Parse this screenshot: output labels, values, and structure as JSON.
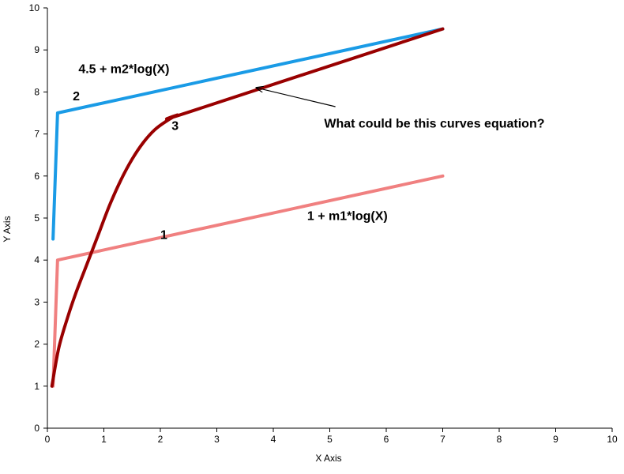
{
  "chart_data": {
    "type": "line",
    "xlabel": "X Axis",
    "ylabel": "Y Axis",
    "xlim": [
      0,
      10
    ],
    "ylim": [
      0,
      10
    ],
    "x_ticks": [
      "0",
      "1",
      "2",
      "3",
      "4",
      "5",
      "6",
      "7",
      "8",
      "9",
      "10"
    ],
    "y_ticks": [
      "0",
      "1",
      "2",
      "3",
      "4",
      "5",
      "6",
      "7",
      "8",
      "9",
      "10"
    ],
    "grid": false,
    "legend": "none",
    "series": [
      {
        "label": "1",
        "color": "#f08080",
        "points": [
          [
            0.1,
            1.0
          ],
          [
            0.18,
            4.0
          ],
          [
            7.0,
            6.0
          ]
        ]
      },
      {
        "label": "2",
        "color": "#1a9be6",
        "points": [
          [
            0.1,
            4.5
          ],
          [
            0.18,
            7.5
          ],
          [
            7.0,
            9.5
          ]
        ]
      },
      {
        "label": "3",
        "color": "#990000",
        "points": [
          [
            0.08,
            1.0
          ],
          [
            0.2,
            1.9
          ],
          [
            0.35,
            2.6
          ],
          [
            0.5,
            3.2
          ],
          [
            0.7,
            3.9
          ],
          [
            0.9,
            4.6
          ],
          [
            1.1,
            5.3
          ],
          [
            1.3,
            5.9
          ],
          [
            1.5,
            6.4
          ],
          [
            1.7,
            6.8
          ],
          [
            1.9,
            7.1
          ],
          [
            2.1,
            7.3
          ],
          [
            2.3,
            7.45
          ],
          [
            2.5,
            7.52
          ],
          [
            7.0,
            9.5
          ]
        ]
      }
    ],
    "annotations": [
      {
        "id": "label-1",
        "text": "1",
        "x": 2.0,
        "y": 4.5
      },
      {
        "id": "label-2",
        "text": "2",
        "x": 0.45,
        "y": 7.8
      },
      {
        "id": "label-3",
        "text": "3",
        "x": 2.2,
        "y": 7.1
      },
      {
        "id": "formula-2",
        "text": "4.5 + m2*log(X)",
        "x": 0.55,
        "y": 8.45
      },
      {
        "id": "formula-1",
        "text": "1 + m1*log(X)",
        "x": 4.6,
        "y": 4.95
      },
      {
        "id": "question",
        "text": "What could be this curves equation?",
        "x": 4.9,
        "y": 7.15
      }
    ],
    "arrow": {
      "from": [
        5.1,
        7.65
      ],
      "to": [
        3.7,
        8.1
      ]
    }
  }
}
